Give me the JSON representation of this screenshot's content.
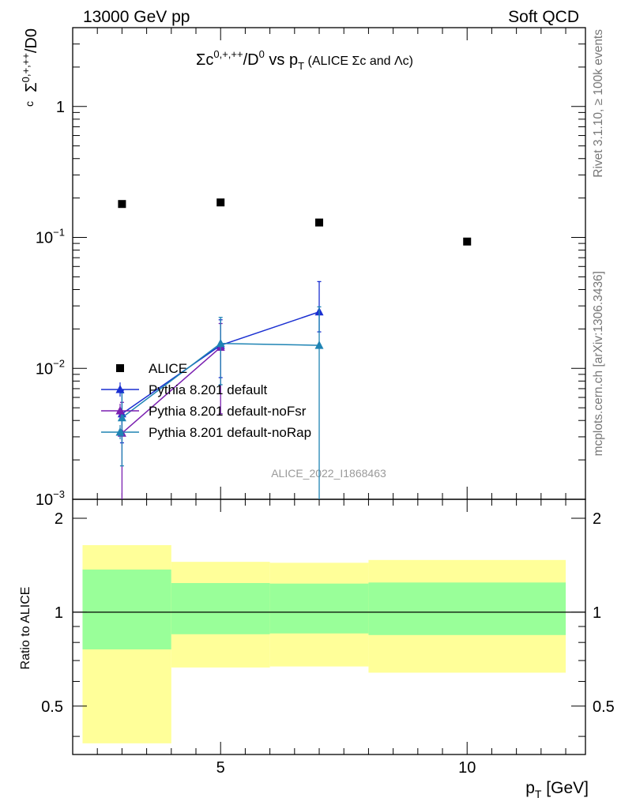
{
  "header": {
    "left": "13000 GeV pp",
    "right": "Soft QCD"
  },
  "side_labels": {
    "rivet": "Rivet 3.1.10, ≥ 100k events",
    "mcplots": "mcplots.cern.ch [arXiv:1306.3436]"
  },
  "watermark": "ALICE_2022_I1868463",
  "chart_data": [
    {
      "type": "scatter",
      "panel": "main",
      "title": {
        "main": "Σc",
        "sup": "0,+,++",
        "mid": "/D",
        "sup2": "0",
        "vs": " vs p",
        "sub": "T",
        "note": " (ALICE Σc and Λc)"
      },
      "ylabel": {
        "main": "Σ",
        "sup": "0,+,++",
        "sub": "c",
        "tail": "/D0"
      },
      "yscale": "log",
      "ylim": [
        0.001,
        4
      ],
      "xlim": [
        2,
        12.4
      ],
      "y_ticks": [
        {
          "value": 1,
          "label": "1"
        },
        {
          "value": 0.1,
          "base": "10",
          "exp": "−1"
        },
        {
          "value": 0.01,
          "base": "10",
          "exp": "−2"
        },
        {
          "value": 0.001,
          "base": "10",
          "exp": "−3"
        }
      ],
      "legend": {
        "placement": "lower-left",
        "entries": [
          {
            "label": "ALICE",
            "marker": "square",
            "color": "#000000"
          },
          {
            "label": "Pythia 8.201 default",
            "marker": "triangle",
            "color": "#1a2fd1"
          },
          {
            "label": "Pythia 8.201 default-noFsr",
            "marker": "triangle",
            "color": "#7a1fb0"
          },
          {
            "label": "Pythia 8.201 default-noRap",
            "marker": "triangle",
            "color": "#1f84b4"
          }
        ]
      },
      "series": [
        {
          "name": "ALICE",
          "color": "#000000",
          "marker": "square",
          "x": [
            3,
            5,
            7,
            10
          ],
          "y": [
            0.18,
            0.185,
            0.13,
            0.093
          ]
        },
        {
          "name": "Pythia 8.201 default",
          "color": "#1a2fd1",
          "marker": "triangle",
          "x": [
            3,
            5,
            7
          ],
          "y": [
            0.0045,
            0.015,
            0.027
          ],
          "err_low": [
            0.0027,
            0.0085,
            0.019
          ],
          "err_high": [
            0.0068,
            0.0235,
            0.046
          ]
        },
        {
          "name": "Pythia 8.201 default-noFsr",
          "color": "#7a1fb0",
          "marker": "triangle",
          "x": [
            3,
            5
          ],
          "y": [
            0.0032,
            0.0145
          ],
          "err_low": [
            0.001,
            0.0045
          ],
          "err_high": [
            0.0055,
            0.022
          ]
        },
        {
          "name": "Pythia 8.201 default-noRap",
          "color": "#1f84b4",
          "marker": "triangle",
          "x": [
            3,
            5,
            7
          ],
          "y": [
            0.0042,
            0.0155,
            0.015
          ],
          "err_low": [
            0.0018,
            0.0075,
            0.001
          ],
          "err_high": [
            0.0065,
            0.0245,
            0.0295
          ]
        }
      ]
    },
    {
      "type": "area",
      "panel": "ratio",
      "ylabel": "Ratio to ALICE",
      "xlabel": {
        "main": "p",
        "sub": "T",
        "tail": " [GeV]"
      },
      "yscale": "log",
      "ylim": [
        0.35,
        2.3
      ],
      "xlim": [
        2,
        12.4
      ],
      "x_ticks": [
        {
          "value": 5,
          "label": "5"
        },
        {
          "value": 10,
          "label": "10"
        }
      ],
      "y_ticks": [
        {
          "value": 2,
          "label": "2"
        },
        {
          "value": 1,
          "label": "1"
        },
        {
          "value": 0.5,
          "label": "0.5"
        }
      ],
      "reference_line": 1,
      "bands": [
        {
          "x0": 2.2,
          "x1": 4,
          "yellow": [
            0.38,
            1.64
          ],
          "green": [
            0.76,
            1.37
          ]
        },
        {
          "x0": 4,
          "x1": 6,
          "yellow": [
            0.665,
            1.45
          ],
          "green": [
            0.85,
            1.24
          ]
        },
        {
          "x0": 6,
          "x1": 8,
          "yellow": [
            0.67,
            1.44
          ],
          "green": [
            0.855,
            1.235
          ]
        },
        {
          "x0": 8,
          "x1": 12.0,
          "yellow": [
            0.64,
            1.47
          ],
          "green": [
            0.845,
            1.245
          ]
        }
      ],
      "band_colors": {
        "yellow": "#ffff99",
        "green": "#99ff99"
      }
    }
  ]
}
